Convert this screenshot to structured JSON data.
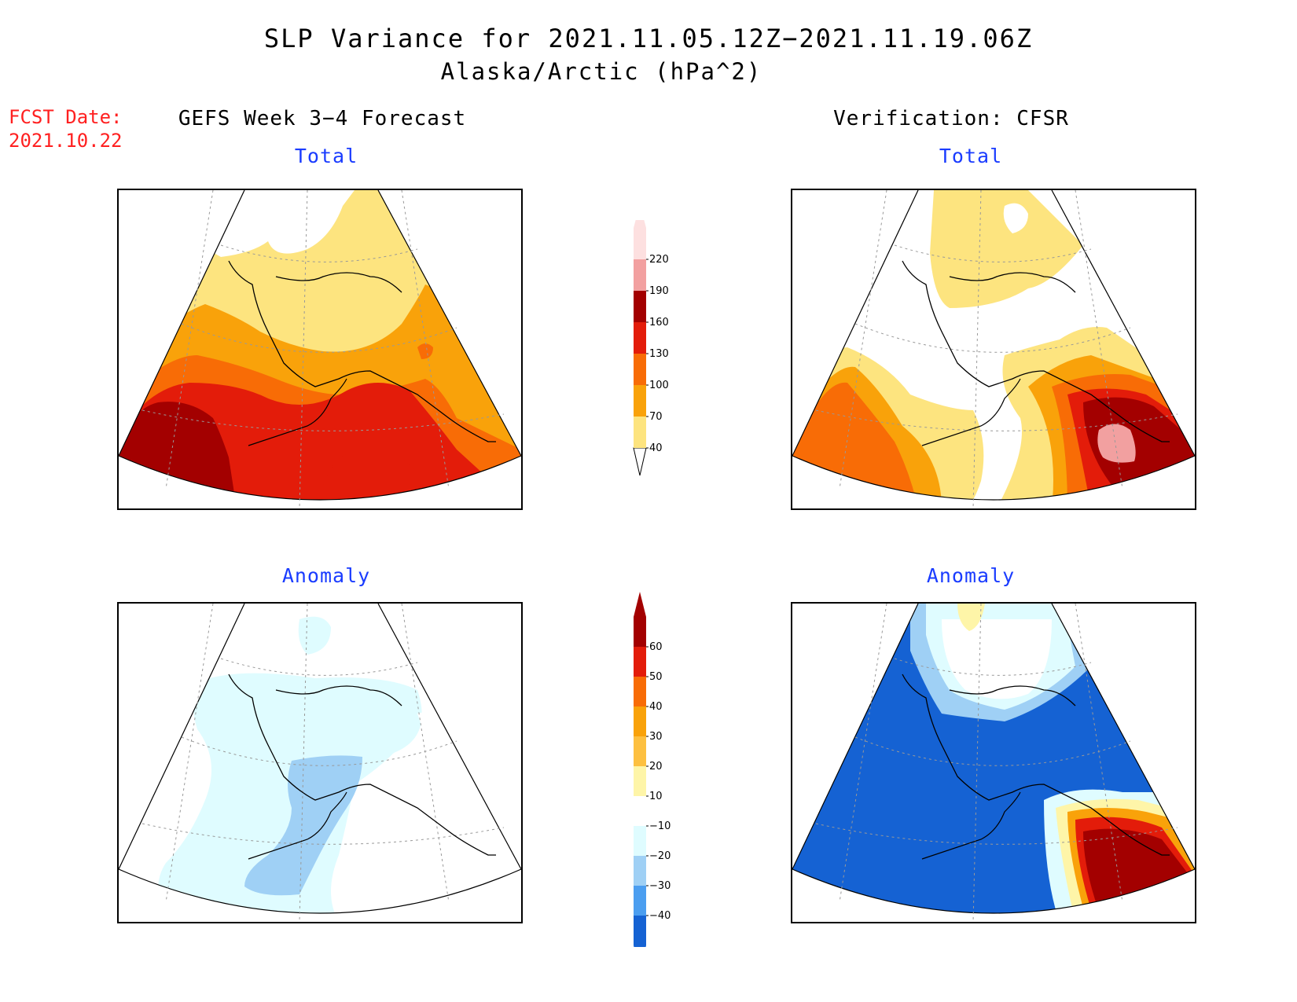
{
  "title": {
    "line1": "SLP Variance for 2021.11.05.12Z−2021.11.19.06Z",
    "line2": "Alaska/Arctic (hPa^2)"
  },
  "fcst_date": {
    "label": "FCST Date:",
    "value": "2021.10.22"
  },
  "columns": {
    "left": "GEFS Week 3−4 Forecast",
    "right": "Verification: CFSR"
  },
  "panels": {
    "top_left": "Total",
    "top_right": "Total",
    "bottom_left": "Anomaly",
    "bottom_right": "Anomaly"
  },
  "colorbar_total": {
    "levels": [
      "40",
      "70",
      "100",
      "130",
      "160",
      "190",
      "220"
    ],
    "colors": [
      "#fde47f",
      "#f9a20a",
      "#f86c06",
      "#e31c0a",
      "#a30000",
      "#f2a0a0",
      "#fde0e0"
    ]
  },
  "colorbar_anomaly": {
    "levels": [
      "60",
      "50",
      "40",
      "30",
      "20",
      "10",
      "−10",
      "−20",
      "−30",
      "−40"
    ],
    "colors": [
      "#a30000",
      "#e31c0a",
      "#f86c06",
      "#f9a20a",
      "#fdc040",
      "#fef5a8",
      "#ffffff",
      "#dffcff",
      "#9fd0f5",
      "#4b9ef0",
      "#1562d3"
    ]
  },
  "map_colors": {
    "lightyellow": "#fde47f",
    "orange1": "#f9a20a",
    "orange2": "#f86c06",
    "red": "#e31c0a",
    "darkred": "#a30000",
    "pink": "#f2a0a0",
    "palecyan": "#dffcff",
    "lightblue": "#9fd0f5",
    "blue": "#1562d3"
  }
}
